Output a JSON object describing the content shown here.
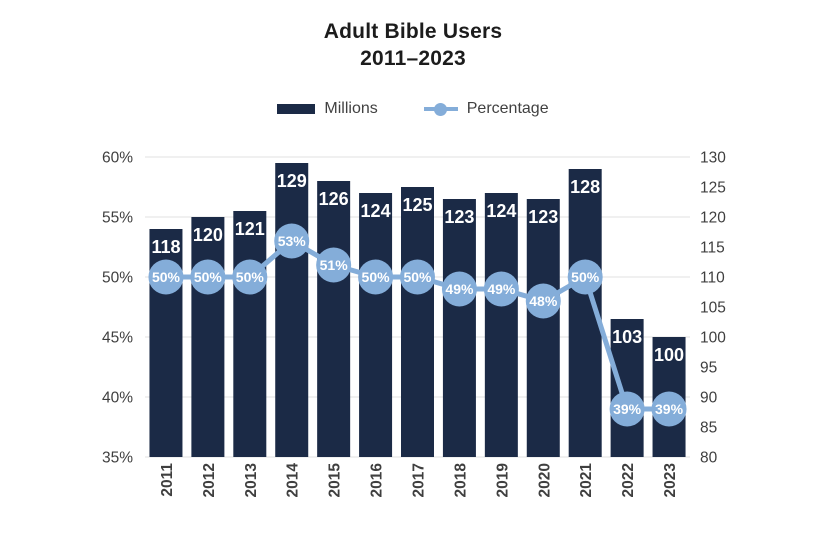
{
  "title": {
    "line1": "Adult Bible Users",
    "line2": "2011–2023"
  },
  "legend": {
    "millions_label": "Millions",
    "percentage_label": "Percentage"
  },
  "colors": {
    "bar": "#1b2a46",
    "line": "#84add9",
    "marker": "#84add9",
    "grid": "#e0e0e0",
    "axis_text": "#3f3f3f",
    "bar_label": "#ffffff",
    "marker_label": "#ffffff",
    "title": "#1c1c1c"
  },
  "chart_data": {
    "type": "bar",
    "subtype": "combo-bar-line-dual-axis",
    "title": "Adult Bible Users 2011–2023",
    "categories": [
      "2011",
      "2012",
      "2013",
      "2014",
      "2015",
      "2016",
      "2017",
      "2018",
      "2019",
      "2020",
      "2021",
      "2022",
      "2023"
    ],
    "series": [
      {
        "name": "Millions",
        "type": "bar",
        "axis": "right",
        "values": [
          118,
          120,
          121,
          129,
          126,
          124,
          125,
          123,
          124,
          123,
          128,
          103,
          100
        ]
      },
      {
        "name": "Percentage",
        "type": "line",
        "axis": "left",
        "label_suffix": "%",
        "values": [
          50,
          50,
          50,
          53,
          51,
          50,
          50,
          49,
          49,
          48,
          50,
          39,
          39
        ]
      }
    ],
    "left_axis": {
      "min": 35,
      "max": 60,
      "tick_values": [
        60,
        55,
        50,
        45,
        40,
        35
      ],
      "tick_suffix": "%"
    },
    "right_axis": {
      "min": 80,
      "max": 130,
      "tick_values": [
        130,
        125,
        120,
        115,
        110,
        105,
        100,
        95,
        90,
        85,
        80
      ],
      "tick_suffix": ""
    },
    "grid": true,
    "legend_position": "top"
  }
}
